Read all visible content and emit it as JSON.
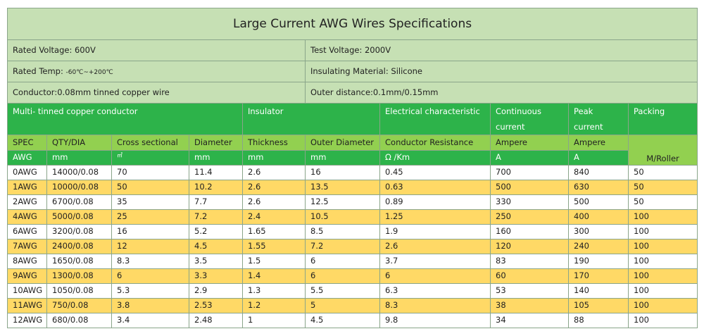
{
  "title": "Large Current AWG Wires Specifications",
  "info": {
    "rated_voltage": "Rated Voltage:   600V",
    "test_voltage": "Test Voltage: 2000V",
    "rated_temp_label": "Rated Temp:",
    "rated_temp_value": "-60℃~+200℃",
    "insulating_material": "Insulating Material: Silicone",
    "conductor": "Conductor:0.08mm tinned copper wire",
    "outer_distance": "Outer distance:0.1mm/0.15mm"
  },
  "group_headers": {
    "conductor": "Multi- tinned copper conductor",
    "insulator": "Insulator",
    "electrical": "Electrical characteristic",
    "continuous_1": "Continuous",
    "continuous_2": "current",
    "peak_1": "Peak",
    "peak_2": "current",
    "packing": "Packing"
  },
  "sub_headers": [
    "SPEC",
    "QTY/DIA",
    "Cross sectional",
    "Diameter",
    "Thickness",
    "Outer Diameter",
    "Conductor Resistance",
    "Ampere",
    "Ampere"
  ],
  "units": [
    "AWG",
    "mm",
    "㎡",
    "mm",
    "mm",
    "mm",
    "Ω /Km",
    "A",
    "A"
  ],
  "packing_unit": "M/Roller",
  "rows": [
    [
      "0AWG",
      "14000/0.08",
      "70",
      "11.4",
      "2.6",
      "16",
      "0.45",
      "700",
      "840",
      "50"
    ],
    [
      "1AWG",
      "10000/0.08",
      "50",
      "10.2",
      "2.6",
      "13.5",
      "0.63",
      "500",
      "630",
      "50"
    ],
    [
      "2AWG",
      "6700/0.08",
      "35",
      "7.7",
      "2.6",
      "12.5",
      "0.89",
      "330",
      "500",
      "50"
    ],
    [
      "4AWG",
      "5000/0.08",
      "25",
      "7.2",
      "2.4",
      "10.5",
      "1.25",
      "250",
      "400",
      "100"
    ],
    [
      "6AWG",
      "3200/0.08",
      "16",
      "5.2",
      "1.65",
      "8.5",
      "1.9",
      "160",
      "300",
      "100"
    ],
    [
      "7AWG",
      "2400/0.08",
      "12",
      "4.5",
      "1.55",
      "7.2",
      "2.6",
      "120",
      "240",
      "100"
    ],
    [
      "8AWG",
      "1650/0.08",
      "8.3",
      "3.5",
      "1.5",
      "6",
      "3.7",
      "83",
      "190",
      "100"
    ],
    [
      "9AWG",
      "1300/0.08",
      "6",
      "3.3",
      "1.4",
      "6",
      "6",
      "60",
      "170",
      "100"
    ],
    [
      "10AWG",
      "1050/0.08",
      "5.3",
      "2.9",
      "1.3",
      "5.5",
      "6.3",
      "53",
      "140",
      "100"
    ],
    [
      "11AWG",
      "750/0.08",
      "3.8",
      "2.53",
      "1.2",
      "5",
      "8.3",
      "38",
      "105",
      "100"
    ],
    [
      "12AWG",
      "680/0.08",
      "3.4",
      "2.48",
      "1",
      "4.5",
      "9.8",
      "34",
      "88",
      "100"
    ]
  ],
  "colors": {
    "title_bg": "#c6e0b4",
    "header_green": "#2db34a",
    "light_green": "#92d050",
    "gold_row": "#ffd966",
    "border": "#8aa58a"
  }
}
